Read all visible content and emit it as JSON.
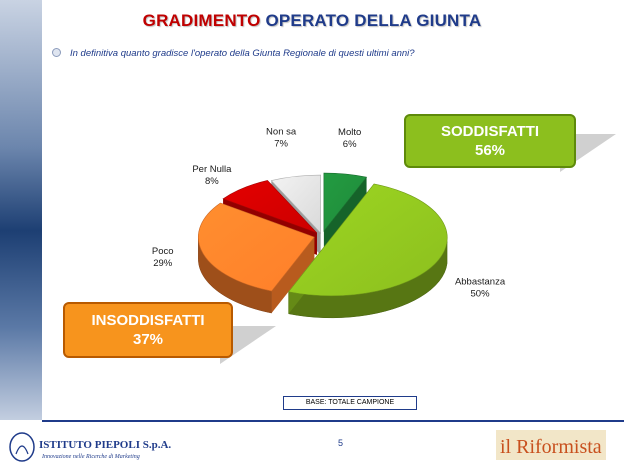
{
  "title_part1": "GRADIMENTO",
  "title_part2": "OPERATO DELLA GIUNTA",
  "question": "In definitiva quanto gradisce l'operato della Giunta Regionale di questi ultimi anni?",
  "callouts": {
    "satisfied": {
      "label": "SODDISFATTI",
      "value": "56%"
    },
    "dissatisfied": {
      "label": "INSODDISFATTI",
      "value": "37%"
    }
  },
  "base_note": "BASE: TOTALE CAMPIONE",
  "page_number": "5",
  "logo_left": {
    "name": "ISTITUTO PIEPOLI S.p.A.",
    "tagline": "Innovazione nelle Ricerche di Marketing"
  },
  "logo_right": {
    "name": "il Riformista"
  },
  "colors": {
    "green": "#8cbf1e",
    "orange": "#f7941d",
    "red": "#cc0000",
    "dark_green": "#1f8a3a",
    "gray": "#d9d9d9",
    "title_red": "#c00000",
    "title_blue": "#1f3b8a"
  },
  "chart_data": {
    "type": "pie",
    "title": "",
    "slices": [
      {
        "label": "Molto",
        "value": 6,
        "display": "6%",
        "color": "#1f8a3a"
      },
      {
        "label": "Abbastanza",
        "value": 50,
        "display": "50%",
        "color": "#8cbf1e"
      },
      {
        "label": "Poco",
        "value": 29,
        "display": "29%",
        "color": "#ff7f2a"
      },
      {
        "label": "Per Nulla",
        "value": 8,
        "display": "8%",
        "color": "#cc0000"
      },
      {
        "label": "Non sa",
        "value": 7,
        "display": "7%",
        "color": "#d9d9d9"
      }
    ]
  }
}
